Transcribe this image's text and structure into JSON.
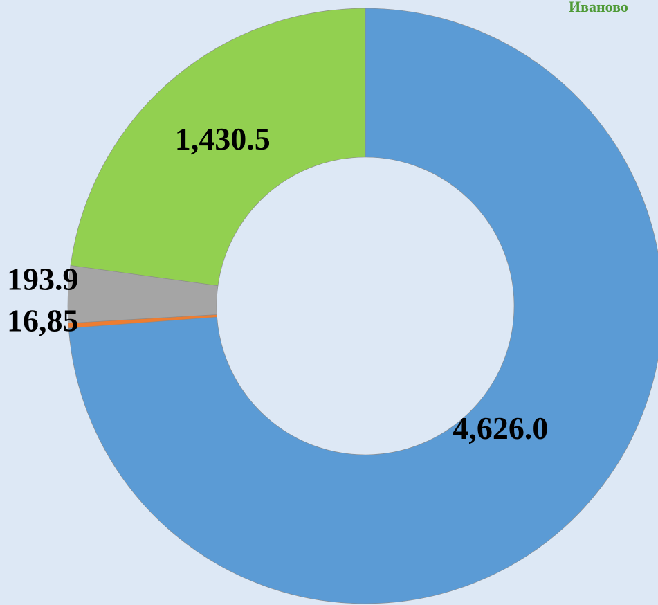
{
  "chart_data": {
    "type": "donut",
    "title": "Иваново",
    "values": [
      4626.0,
      16.85,
      193.9,
      1430.5
    ],
    "value_labels": [
      "4,626.0",
      "16,85",
      "193.9",
      "1,430.5"
    ],
    "colors": [
      "#5b9bd5",
      "#ed7d31",
      "#a5a5a5",
      "#92d050"
    ]
  }
}
